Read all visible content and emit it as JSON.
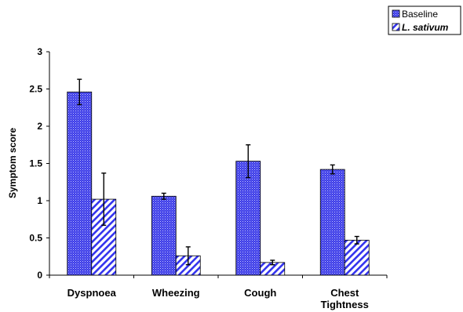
{
  "chart_data": {
    "type": "bar",
    "title": "",
    "xlabel": "",
    "ylabel": "Symptom score",
    "categories": [
      "Dyspnoea",
      "Wheezing",
      "Cough",
      "Chest Tightness"
    ],
    "category_lines": [
      [
        "Dyspnoea"
      ],
      [
        "Wheezing"
      ],
      [
        "Cough"
      ],
      [
        "Chest",
        "Tightness"
      ]
    ],
    "ylim": [
      0,
      3
    ],
    "yticks": [
      "0",
      "0.5",
      "1",
      "1.5",
      "2",
      "2.5",
      "3"
    ],
    "grid": false,
    "legend_position": "top-right",
    "series": [
      {
        "name": "Baseline",
        "values": [
          2.46,
          1.06,
          1.53,
          1.42
        ],
        "error": [
          0.17,
          0.04,
          0.22,
          0.06
        ],
        "color": "#3333ee",
        "pattern": "dotted"
      },
      {
        "name": "L. sativum",
        "values": [
          1.02,
          0.26,
          0.17,
          0.47
        ],
        "error": [
          0.35,
          0.12,
          0.03,
          0.05
        ],
        "color": "#3333ee",
        "pattern": "diagonal-hatch"
      }
    ]
  }
}
